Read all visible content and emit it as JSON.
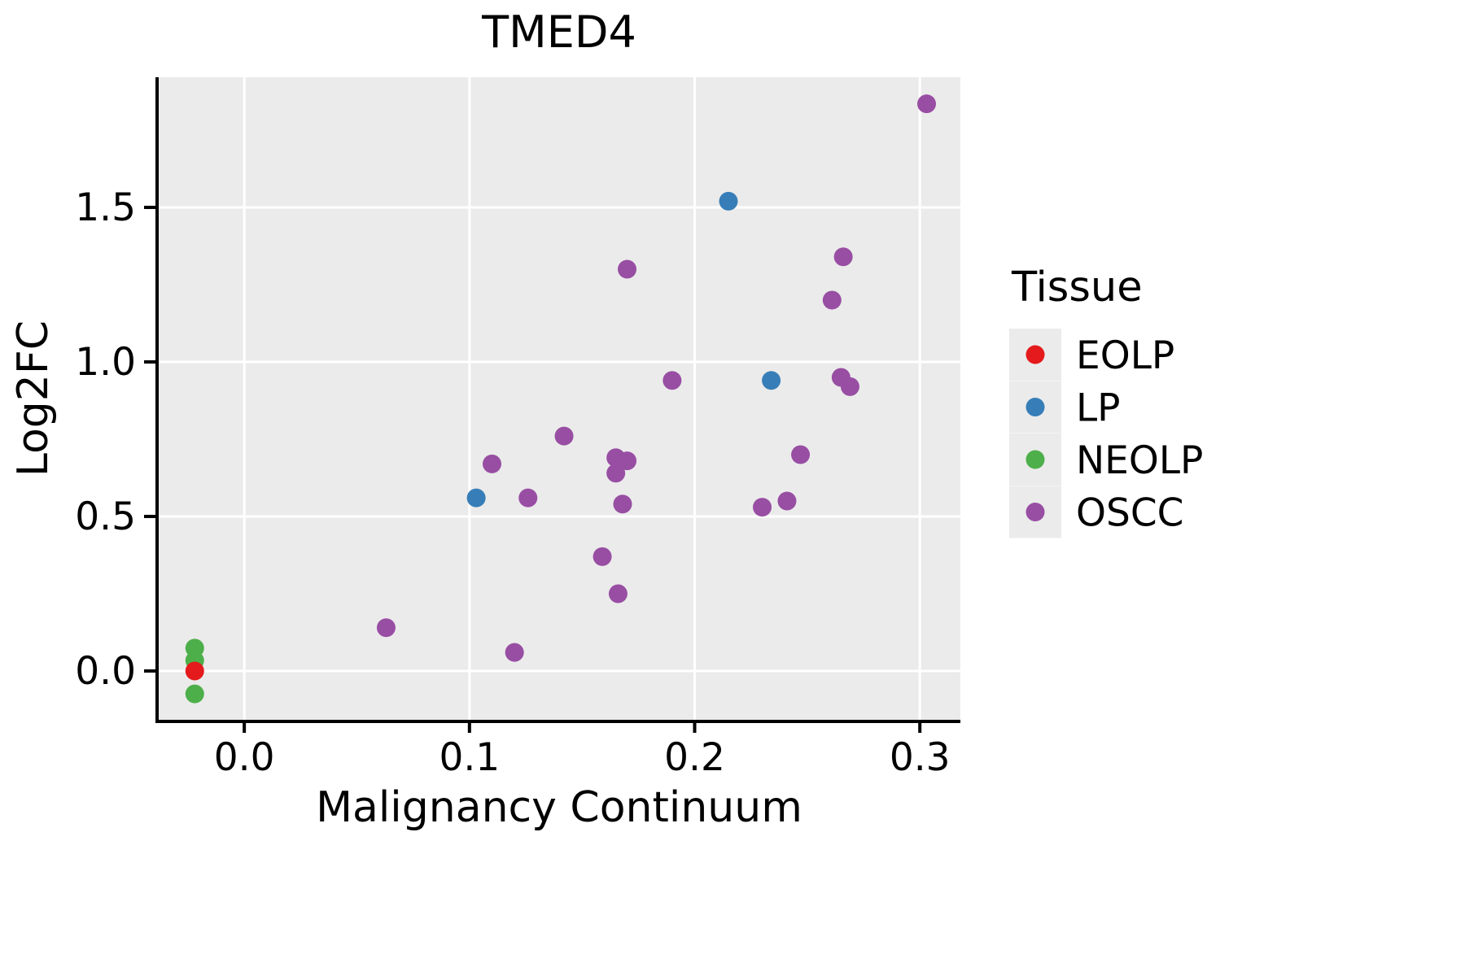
{
  "chart_data": {
    "type": "scatter",
    "title": "TMED4",
    "xlabel": "Malignancy Continuum",
    "ylabel": "Log2FC",
    "legend_title": "Tissue",
    "legend_position": "right",
    "grid": true,
    "panel_color": "#EBEBEB",
    "gridline_color": "#FFFFFF",
    "axis_color": "#000000",
    "x_ticks": [
      0.0,
      0.1,
      0.2,
      0.3
    ],
    "x_tick_labels": [
      "0.0",
      "0.1",
      "0.2",
      "0.3"
    ],
    "y_ticks": [
      0.0,
      0.5,
      1.0,
      1.5
    ],
    "y_tick_labels": [
      "0.0",
      "0.5",
      "1.0",
      "1.5"
    ],
    "xlim": [
      -0.038,
      0.318
    ],
    "ylim": [
      -0.158,
      1.921
    ],
    "series": [
      {
        "name": "EOLP",
        "color": "#E41A1C",
        "points": [
          [
            -0.022,
            0.0
          ]
        ]
      },
      {
        "name": "LP",
        "color": "#377EB8",
        "points": [
          [
            0.103,
            0.56
          ],
          [
            0.215,
            1.52
          ],
          [
            0.234,
            0.94
          ]
        ]
      },
      {
        "name": "NEOLP",
        "color": "#4DAF4A",
        "points": [
          [
            -0.022,
            0.074
          ],
          [
            -0.022,
            0.034
          ],
          [
            -0.022,
            -0.074
          ]
        ]
      },
      {
        "name": "OSCC",
        "color": "#984EA3",
        "points": [
          [
            0.303,
            1.835
          ],
          [
            0.266,
            1.34
          ],
          [
            0.17,
            1.3
          ],
          [
            0.261,
            1.2
          ],
          [
            0.19,
            0.94
          ],
          [
            0.265,
            0.95
          ],
          [
            0.269,
            0.92
          ],
          [
            0.247,
            0.7
          ],
          [
            0.142,
            0.76
          ],
          [
            0.11,
            0.67
          ],
          [
            0.165,
            0.69
          ],
          [
            0.17,
            0.68
          ],
          [
            0.165,
            0.64
          ],
          [
            0.126,
            0.56
          ],
          [
            0.168,
            0.54
          ],
          [
            0.23,
            0.53
          ],
          [
            0.241,
            0.55
          ],
          [
            0.159,
            0.37
          ],
          [
            0.166,
            0.25
          ],
          [
            0.063,
            0.14
          ],
          [
            0.12,
            0.06
          ]
        ]
      }
    ]
  }
}
